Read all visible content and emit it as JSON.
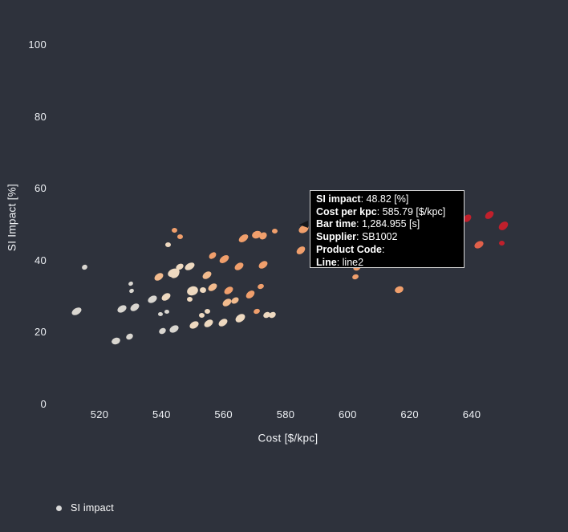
{
  "window": {
    "background": "#2e323c",
    "text_color": "#eef1f5"
  },
  "axes": {
    "x": {
      "title": "Cost [$/kpc]",
      "ticks": [
        "520",
        "540",
        "560",
        "580",
        "600",
        "620",
        "640"
      ]
    },
    "y": {
      "title": "SI Impact [%]",
      "ticks": [
        "0",
        "20",
        "40",
        "60",
        "80",
        "100"
      ]
    }
  },
  "legend": {
    "items": [
      {
        "label": "SI impact",
        "marker_color": "#d9d9d9"
      }
    ]
  },
  "tooltip": {
    "rows": [
      {
        "label": "SI impact",
        "value": "48.82 [%]"
      },
      {
        "label": "Cost per kpc",
        "value": "585.79 [$/kpc]"
      },
      {
        "label": "Bar time",
        "value": "1,284.955 [s]"
      },
      {
        "label": "Supplier",
        "value": "SB1002"
      },
      {
        "label": "Product Code",
        "value": ""
      },
      {
        "label": "Line",
        "value": "line2"
      }
    ]
  },
  "chart_data": {
    "type": "scatter",
    "title": "",
    "xlabel": "Cost [$/kpc]",
    "ylabel": "SI Impact [%]",
    "xlim": [
      505,
      660
    ],
    "ylim": [
      0,
      105
    ],
    "grid": false,
    "legend_position": "bottom-left",
    "series_name": "SI impact",
    "color_scale": [
      "#d9d6d0",
      "#eed9c0",
      "#f2bb8e",
      "#f09f6c",
      "#e0604a",
      "#c0202c"
    ],
    "hovered_point": {
      "si_impact": 48.82,
      "cost_per_kpc": 585.79,
      "bar_time_s": "1,284.955",
      "supplier": "SB1002",
      "product_code": "",
      "line": "line2"
    },
    "points": [
      {
        "x": 515.1,
        "y": 38.2,
        "color": "#d9d6d0",
        "w": 7,
        "h": 6,
        "rot": -30
      },
      {
        "x": 512.5,
        "y": 25.9,
        "color": "#d9d6d0",
        "w": 13,
        "h": 8,
        "rot": -30
      },
      {
        "x": 530.1,
        "y": 33.5,
        "color": "#d9d6d0",
        "w": 6,
        "h": 5,
        "rot": -30
      },
      {
        "x": 530.3,
        "y": 31.6,
        "color": "#d9d6d0",
        "w": 6,
        "h": 5,
        "rot": -30
      },
      {
        "x": 539.1,
        "y": 35.5,
        "color": "#f2bb8e",
        "w": 12,
        "h": 8,
        "rot": -35
      },
      {
        "x": 544.0,
        "y": 36.6,
        "color": "#eed9c0",
        "w": 15,
        "h": 10,
        "rot": -20
      },
      {
        "x": 537.1,
        "y": 29.3,
        "color": "#d9d6d0",
        "w": 12,
        "h": 8,
        "rot": -30
      },
      {
        "x": 541.5,
        "y": 29.9,
        "color": "#eed9c0",
        "w": 12,
        "h": 8,
        "rot": -35
      },
      {
        "x": 527.2,
        "y": 26.6,
        "color": "#d9d6d0",
        "w": 12,
        "h": 8,
        "rot": -30
      },
      {
        "x": 531.4,
        "y": 27.0,
        "color": "#d9d6d0",
        "w": 12,
        "h": 8,
        "rot": -35
      },
      {
        "x": 539.7,
        "y": 25.2,
        "color": "#d9d6d0",
        "w": 6,
        "h": 5,
        "rot": 0
      },
      {
        "x": 541.6,
        "y": 25.7,
        "color": "#d9d6d0",
        "w": 6,
        "h": 5,
        "rot": 0
      },
      {
        "x": 540.4,
        "y": 20.5,
        "color": "#d9d6d0",
        "w": 9,
        "h": 7,
        "rot": -30
      },
      {
        "x": 544.0,
        "y": 21.0,
        "color": "#d9d6d0",
        "w": 12,
        "h": 8,
        "rot": -30
      },
      {
        "x": 525.4,
        "y": 17.6,
        "color": "#d9d6d0",
        "w": 11,
        "h": 8,
        "rot": -20
      },
      {
        "x": 529.8,
        "y": 18.8,
        "color": "#d9d6d0",
        "w": 9,
        "h": 7,
        "rot": -30
      },
      {
        "x": 544.3,
        "y": 48.5,
        "color": "#f09f6c",
        "w": 7,
        "h": 6,
        "rot": 0
      },
      {
        "x": 546.1,
        "y": 46.7,
        "color": "#f09f6c",
        "w": 7,
        "h": 6,
        "rot": 0
      },
      {
        "x": 542.2,
        "y": 44.4,
        "color": "#eed9c0",
        "w": 7,
        "h": 6,
        "rot": 0
      },
      {
        "x": 556.5,
        "y": 41.3,
        "color": "#f09f6c",
        "w": 10,
        "h": 7,
        "rot": -40
      },
      {
        "x": 560.3,
        "y": 40.4,
        "color": "#f09f6c",
        "w": 13,
        "h": 8,
        "rot": -35
      },
      {
        "x": 566.3,
        "y": 46.2,
        "color": "#f09f6c",
        "w": 13,
        "h": 8,
        "rot": -35
      },
      {
        "x": 565.0,
        "y": 38.4,
        "color": "#f09f6c",
        "w": 12,
        "h": 8,
        "rot": -35
      },
      {
        "x": 545.9,
        "y": 38.2,
        "color": "#eed9c0",
        "w": 10,
        "h": 7,
        "rot": -30
      },
      {
        "x": 549.2,
        "y": 38.4,
        "color": "#eed9c0",
        "w": 13,
        "h": 8,
        "rot": -30
      },
      {
        "x": 544.3,
        "y": 36.2,
        "color": "#eed9c0",
        "w": 12,
        "h": 9,
        "rot": -40
      },
      {
        "x": 554.7,
        "y": 36.0,
        "color": "#f2bb8e",
        "w": 12,
        "h": 8,
        "rot": -35
      },
      {
        "x": 550.0,
        "y": 31.5,
        "color": "#eed9c0",
        "w": 14,
        "h": 11,
        "rot": -20
      },
      {
        "x": 553.4,
        "y": 31.7,
        "color": "#eed9c0",
        "w": 8,
        "h": 7,
        "rot": 0
      },
      {
        "x": 556.5,
        "y": 32.6,
        "color": "#f2bb8e",
        "w": 12,
        "h": 8,
        "rot": -35
      },
      {
        "x": 561.6,
        "y": 31.7,
        "color": "#f09f6c",
        "w": 12,
        "h": 8,
        "rot": -35
      },
      {
        "x": 549.2,
        "y": 29.3,
        "color": "#eed9c0",
        "w": 7,
        "h": 6,
        "rot": 0
      },
      {
        "x": 553.1,
        "y": 24.8,
        "color": "#eed9c0",
        "w": 7,
        "h": 6,
        "rot": 0
      },
      {
        "x": 554.7,
        "y": 25.9,
        "color": "#eed9c0",
        "w": 7,
        "h": 6,
        "rot": 0
      },
      {
        "x": 561.1,
        "y": 28.4,
        "color": "#f2bb8e",
        "w": 12,
        "h": 8,
        "rot": -35
      },
      {
        "x": 550.5,
        "y": 22.1,
        "color": "#eed9c0",
        "w": 12,
        "h": 8,
        "rot": -30
      },
      {
        "x": 555.2,
        "y": 22.6,
        "color": "#eed9c0",
        "w": 12,
        "h": 8,
        "rot": -35
      },
      {
        "x": 559.8,
        "y": 22.8,
        "color": "#eed9c0",
        "w": 12,
        "h": 8,
        "rot": -35
      },
      {
        "x": 565.5,
        "y": 23.9,
        "color": "#eed9c0",
        "w": 13,
        "h": 9,
        "rot": -35
      },
      {
        "x": 570.7,
        "y": 47.3,
        "color": "#f09f6c",
        "w": 12,
        "h": 9,
        "rot": -20
      },
      {
        "x": 572.8,
        "y": 46.9,
        "color": "#f09f6c",
        "w": 10,
        "h": 8,
        "rot": -40
      },
      {
        "x": 576.6,
        "y": 48.2,
        "color": "#f09f6c",
        "w": 7,
        "h": 6,
        "rot": 0
      },
      {
        "x": 585.79,
        "y": 48.82,
        "color": "#f09f6c",
        "w": 13,
        "h": 9,
        "rot": -30
      },
      {
        "x": 584.9,
        "y": 42.9,
        "color": "#f09f6c",
        "w": 12,
        "h": 8,
        "rot": -40
      },
      {
        "x": 572.8,
        "y": 38.9,
        "color": "#f09f6c",
        "w": 12,
        "h": 8,
        "rot": -35
      },
      {
        "x": 572.0,
        "y": 32.8,
        "color": "#f09f6c",
        "w": 8,
        "h": 6,
        "rot": -20
      },
      {
        "x": 568.6,
        "y": 30.6,
        "color": "#f09f6c",
        "w": 12,
        "h": 8,
        "rot": -40
      },
      {
        "x": 563.7,
        "y": 28.8,
        "color": "#f2bb8e",
        "w": 10,
        "h": 7,
        "rot": -35
      },
      {
        "x": 570.7,
        "y": 25.9,
        "color": "#f09f6c",
        "w": 8,
        "h": 6,
        "rot": -20
      },
      {
        "x": 574.0,
        "y": 24.8,
        "color": "#eed9c0",
        "w": 9,
        "h": 7,
        "rot": -30
      },
      {
        "x": 575.8,
        "y": 25.0,
        "color": "#eed9c0",
        "w": 9,
        "h": 7,
        "rot": -30
      },
      {
        "x": 602.5,
        "y": 35.5,
        "color": "#f09f6c",
        "w": 8,
        "h": 6,
        "rot": -20
      },
      {
        "x": 603.0,
        "y": 38.2,
        "color": "#f09f6c",
        "w": 10,
        "h": 8,
        "rot": -30
      },
      {
        "x": 616.5,
        "y": 31.9,
        "color": "#f09f6c",
        "w": 11,
        "h": 8,
        "rot": -20
      },
      {
        "x": 638.7,
        "y": 51.8,
        "color": "#c0202c",
        "w": 11,
        "h": 8,
        "rot": -40
      },
      {
        "x": 645.7,
        "y": 52.7,
        "color": "#c0202c",
        "w": 12,
        "h": 8,
        "rot": -40
      },
      {
        "x": 650.1,
        "y": 49.6,
        "color": "#c0202c",
        "w": 13,
        "h": 9,
        "rot": -40
      },
      {
        "x": 642.3,
        "y": 44.4,
        "color": "#e0604a",
        "w": 12,
        "h": 8,
        "rot": -30
      },
      {
        "x": 649.8,
        "y": 44.9,
        "color": "#c0202c",
        "w": 7,
        "h": 6,
        "rot": 0
      }
    ]
  }
}
